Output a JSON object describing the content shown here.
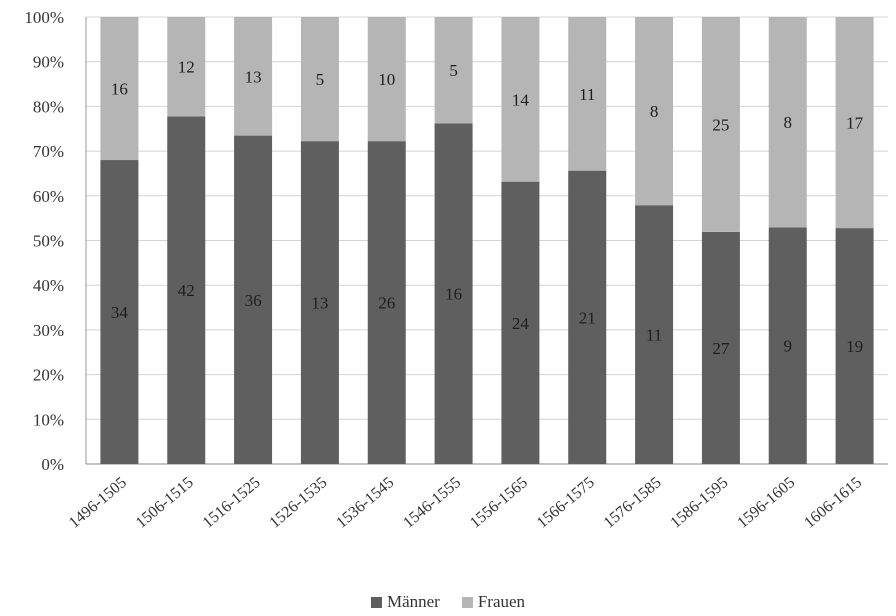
{
  "chart_data": {
    "type": "bar",
    "stacked": true,
    "normalized": true,
    "categories": [
      "1496-1505",
      "1506-1515",
      "1516-1525",
      "1526-1535",
      "1536-1545",
      "1546-1555",
      "1556-1565",
      "1566-1575",
      "1576-1585",
      "1586-1595",
      "1596-1605",
      "1606-1615"
    ],
    "series": [
      {
        "name": "Männer",
        "color": "#5f5f5f",
        "values": [
          34,
          42,
          36,
          13,
          26,
          16,
          24,
          21,
          11,
          27,
          9,
          19
        ]
      },
      {
        "name": "Frauen",
        "color": "#b5b5b5",
        "values": [
          16,
          12,
          13,
          5,
          10,
          5,
          14,
          11,
          8,
          25,
          8,
          17
        ]
      }
    ],
    "yticks": [
      "0%",
      "10%",
      "20%",
      "30%",
      "40%",
      "50%",
      "60%",
      "70%",
      "80%",
      "90%",
      "100%"
    ],
    "ylim": [
      0,
      100
    ],
    "grid": true,
    "legend_position": "bottom",
    "title": "",
    "xlabel": "",
    "ylabel": ""
  }
}
